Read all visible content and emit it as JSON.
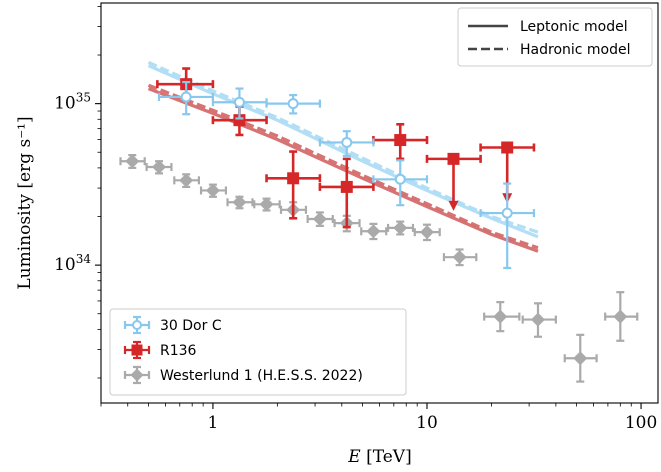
{
  "chart_data": {
    "type": "scatter",
    "title": "",
    "xlabel": "E [TeV]",
    "ylabel": "Luminosity [erg s⁻¹]",
    "xscale": "log",
    "yscale": "log",
    "xlim": [
      0.3,
      120
    ],
    "ylim": [
      1.4e+33,
      4.2e+35
    ],
    "x_ticks": [
      {
        "value": 1,
        "label": "1"
      },
      {
        "value": 10,
        "label": "10"
      },
      {
        "value": 100,
        "label": "100"
      }
    ],
    "y_ticks": [
      {
        "value": 1e+34,
        "base": "10",
        "exp": "34"
      },
      {
        "value": 1e+35,
        "base": "10",
        "exp": "35"
      }
    ],
    "grid": false,
    "model_legend": {
      "placement": "top-right",
      "entries": [
        {
          "label": "Leptonic model",
          "style": "solid"
        },
        {
          "label": "Hadronic model",
          "style": "dashed"
        }
      ]
    },
    "data_legend": {
      "placement": "bottom-left"
    },
    "series": [
      {
        "name": "Westerlund 1 (H.E.S.S. 2022)",
        "color": "#aaaaaa",
        "marker": "diamond-filled",
        "points": [
          {
            "x": 0.42,
            "y": 4.4e+34,
            "xlo": 0.37,
            "xhi": 0.48,
            "ylo": 4e+34,
            "yhi": 4.8e+34
          },
          {
            "x": 0.56,
            "y": 4.05e+34,
            "xlo": 0.49,
            "xhi": 0.64,
            "ylo": 3.7e+34,
            "yhi": 4.4e+34
          },
          {
            "x": 0.75,
            "y": 3.35e+34,
            "xlo": 0.66,
            "xhi": 0.86,
            "ylo": 3.05e+34,
            "yhi": 3.65e+34
          },
          {
            "x": 1.0,
            "y": 2.9e+34,
            "xlo": 0.88,
            "xhi": 1.15,
            "ylo": 2.65e+34,
            "yhi": 3.15e+34
          },
          {
            "x": 1.33,
            "y": 2.45e+34,
            "xlo": 1.17,
            "xhi": 1.53,
            "ylo": 2.25e+34,
            "yhi": 2.65e+34
          },
          {
            "x": 1.78,
            "y": 2.38e+34,
            "xlo": 1.56,
            "xhi": 2.05,
            "ylo": 2.18e+34,
            "yhi": 2.58e+34
          },
          {
            "x": 2.37,
            "y": 2.2e+34,
            "xlo": 2.08,
            "xhi": 2.72,
            "ylo": 1.95e+34,
            "yhi": 2.45e+34
          },
          {
            "x": 3.16,
            "y": 1.93e+34,
            "xlo": 2.77,
            "xhi": 3.63,
            "ylo": 1.75e+34,
            "yhi": 2.12e+34
          },
          {
            "x": 4.22,
            "y": 1.82e+34,
            "xlo": 3.7,
            "xhi": 4.84,
            "ylo": 1.62e+34,
            "yhi": 2.02e+34
          },
          {
            "x": 5.62,
            "y": 1.62e+34,
            "xlo": 4.93,
            "xhi": 6.45,
            "ylo": 1.45e+34,
            "yhi": 1.8e+34
          },
          {
            "x": 7.5,
            "y": 1.7e+34,
            "xlo": 6.58,
            "xhi": 8.6,
            "ylo": 1.55e+34,
            "yhi": 1.86e+34
          },
          {
            "x": 10.0,
            "y": 1.6e+34,
            "xlo": 8.77,
            "xhi": 11.47,
            "ylo": 1.43e+34,
            "yhi": 1.78e+34
          },
          {
            "x": 14.2,
            "y": 1.12e+34,
            "xlo": 12.0,
            "xhi": 17.0,
            "ylo": 1e+34,
            "yhi": 1.25e+34
          },
          {
            "x": 22.0,
            "y": 4.8e+33,
            "xlo": 18.5,
            "xhi": 27.0,
            "ylo": 3.9e+33,
            "yhi": 5.9e+33
          },
          {
            "x": 33.0,
            "y": 4.6e+33,
            "xlo": 28.0,
            "xhi": 40.0,
            "ylo": 3.6e+33,
            "yhi": 5.8e+33
          },
          {
            "x": 52.0,
            "y": 2.65e+33,
            "xlo": 44.0,
            "xhi": 62.0,
            "ylo": 1.9e+33,
            "yhi": 3.7e+33
          },
          {
            "x": 80.0,
            "y": 4.8e+33,
            "xlo": 68.0,
            "xhi": 96.0,
            "ylo": 3.4e+33,
            "yhi": 6.8e+33
          }
        ]
      },
      {
        "name": "R136",
        "color": "#d62728",
        "marker": "square-filled",
        "points": [
          {
            "x": 0.75,
            "y": 1.32e+35,
            "xlo": 0.55,
            "xhi": 1.0,
            "ylo": 1.05e+35,
            "yhi": 1.65e+35
          },
          {
            "x": 1.33,
            "y": 7.9e+34,
            "xlo": 1.0,
            "xhi": 1.78,
            "ylo": 6.4e+34,
            "yhi": 9.6e+34
          },
          {
            "x": 2.37,
            "y": 3.45e+34,
            "xlo": 1.78,
            "xhi": 3.16,
            "ylo": 1.95e+34,
            "yhi": 5.05e+34
          },
          {
            "x": 4.22,
            "y": 3.05e+34,
            "xlo": 3.16,
            "xhi": 5.62,
            "ylo": 1.72e+34,
            "yhi": 4.55e+34
          },
          {
            "x": 7.5,
            "y": 5.95e+34,
            "xlo": 5.62,
            "xhi": 10.0,
            "ylo": 4.55e+34,
            "yhi": 7.45e+34
          },
          {
            "x": 13.3,
            "y": 4.55e+34,
            "xlo": 10.0,
            "xhi": 17.8,
            "upper_limit": true,
            "arrow_to": 2.2e+34
          },
          {
            "x": 23.7,
            "y": 5.35e+34,
            "xlo": 17.8,
            "xhi": 31.6,
            "upper_limit": true,
            "arrow_to": 2.45e+34
          }
        ]
      },
      {
        "name": "30 Dor C",
        "color": "#88c8ee",
        "marker": "circle-open",
        "points": [
          {
            "x": 0.75,
            "y": 1.1e+35,
            "xlo": 0.56,
            "xhi": 1.0,
            "ylo": 8.6e+34,
            "yhi": 1.36e+35
          },
          {
            "x": 1.33,
            "y": 1.02e+35,
            "xlo": 1.0,
            "xhi": 1.78,
            "ylo": 8.1e+34,
            "yhi": 1.24e+35
          },
          {
            "x": 2.37,
            "y": 1e+35,
            "xlo": 1.78,
            "xhi": 3.16,
            "ylo": 8.7e+34,
            "yhi": 1.13e+35
          },
          {
            "x": 4.22,
            "y": 5.75e+34,
            "xlo": 3.16,
            "xhi": 5.62,
            "ylo": 4.75e+34,
            "yhi": 6.75e+34
          },
          {
            "x": 7.5,
            "y": 3.4e+34,
            "xlo": 5.62,
            "xhi": 10.0,
            "ylo": 2.35e+34,
            "yhi": 4.45e+34
          },
          {
            "x": 23.7,
            "y": 2.1e+34,
            "xlo": 17.8,
            "xhi": 31.6,
            "ylo": 9.6e+33,
            "yhi": 3.2e+34
          }
        ]
      }
    ],
    "models": [
      {
        "source": "30 Dor C",
        "type": "Leptonic model",
        "style": "solid",
        "color": "#aedcf6",
        "x": [
          0.5,
          1,
          2,
          5,
          10,
          20,
          33
        ],
        "y": [
          1.72e+35,
          1.15e+35,
          7.9e+34,
          4.4e+34,
          2.9e+34,
          1.95e+34,
          1.5e+34
        ]
      },
      {
        "source": "30 Dor C",
        "type": "Hadronic model",
        "style": "dashed",
        "color": "#aedcf6",
        "x": [
          0.5,
          1,
          2,
          5,
          10,
          20,
          33
        ],
        "y": [
          1.8e+35,
          1.2e+35,
          8.2e+34,
          4.6e+34,
          3e+34,
          2e+34,
          1.6e+34
        ]
      },
      {
        "source": "R136",
        "type": "Leptonic model",
        "style": "solid",
        "color": "#d46b6b",
        "x": [
          0.5,
          1,
          2,
          5,
          10,
          20,
          33
        ],
        "y": [
          1.24e+35,
          8.7e+34,
          6e+34,
          3.45e+34,
          2.3e+34,
          1.55e+34,
          1.22e+34
        ]
      },
      {
        "source": "R136",
        "type": "Hadronic model",
        "style": "dashed",
        "color": "#d46b6b",
        "x": [
          0.5,
          1,
          2,
          5,
          10,
          20,
          33
        ],
        "y": [
          1.3e+35,
          9.1e+34,
          6.3e+34,
          3.6e+34,
          2.4e+34,
          1.6e+34,
          1.28e+34
        ]
      }
    ]
  }
}
